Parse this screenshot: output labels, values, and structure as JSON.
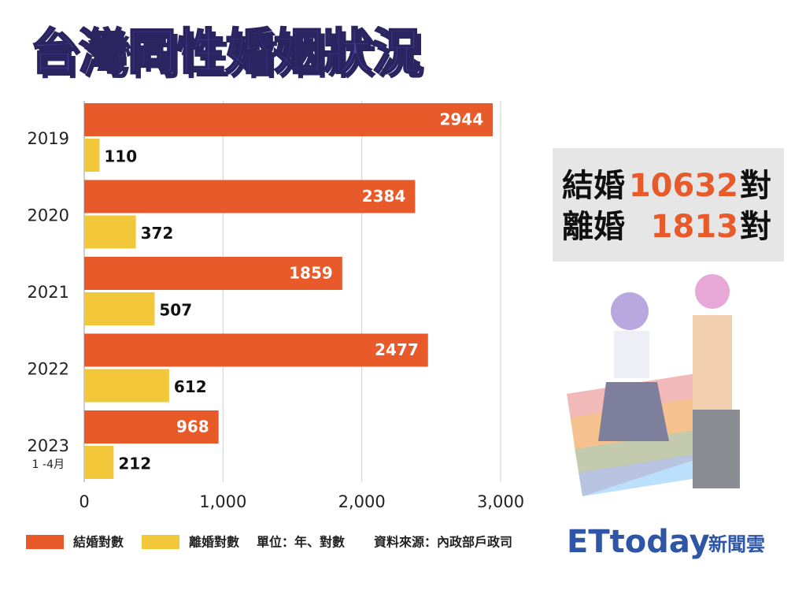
{
  "chart_data": {
    "type": "bar",
    "title": "台灣同性婚姻狀況",
    "categories": [
      "2019",
      "2020",
      "2021",
      "2022",
      "2023"
    ],
    "category_note": "1 -4月",
    "series": [
      {
        "name": "結婚對數",
        "color": "#e85a2a",
        "values": [
          2944,
          2384,
          1859,
          2477,
          968
        ]
      },
      {
        "name": "離婚對數",
        "color": "#f2c83a",
        "values": [
          110,
          372,
          507,
          612,
          212
        ]
      }
    ],
    "xlim": [
      0,
      3000
    ],
    "xticks": [
      0,
      {
        "value": 1000,
        "label": "1,000"
      },
      {
        "value": 2000,
        "label": "2,000"
      },
      {
        "value": 3000,
        "label": "3,000"
      }
    ],
    "grid": true,
    "unit_note": "單位：年、對數",
    "source": "資料來源：內政部戶政司",
    "summary": [
      {
        "label": "結婚",
        "value": 10632,
        "unit": "對"
      },
      {
        "label": "離婚",
        "value": 1813,
        "unit": "對"
      }
    ],
    "logo": {
      "brand": "ETtoday",
      "suffix": "新聞雲"
    }
  }
}
